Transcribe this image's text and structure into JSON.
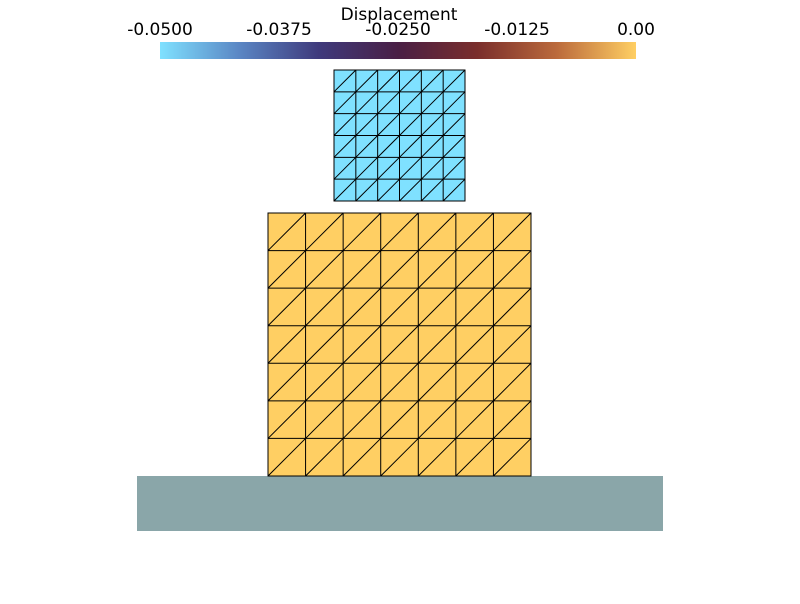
{
  "colorbar": {
    "title": "Displacement",
    "range": [
      -0.05,
      0
    ],
    "ticks": [
      {
        "value": -0.05,
        "label": "-0.0500"
      },
      {
        "value": -0.0375,
        "label": "-0.0375"
      },
      {
        "value": -0.025,
        "label": "-0.0250"
      },
      {
        "value": -0.0125,
        "label": "-0.0125"
      },
      {
        "value": 0,
        "label": "0.00"
      }
    ],
    "colors": [
      "#7fe1ff",
      "#5a86c4",
      "#3f3a7c",
      "#4a1f45",
      "#7a2e2c",
      "#bb6a3c",
      "#ffcf63"
    ]
  },
  "meshes": [
    {
      "displacement": -0.05,
      "rows": 6,
      "cols": 6
    },
    {
      "displacement": 0,
      "rows": 7,
      "cols": 7
    }
  ]
}
